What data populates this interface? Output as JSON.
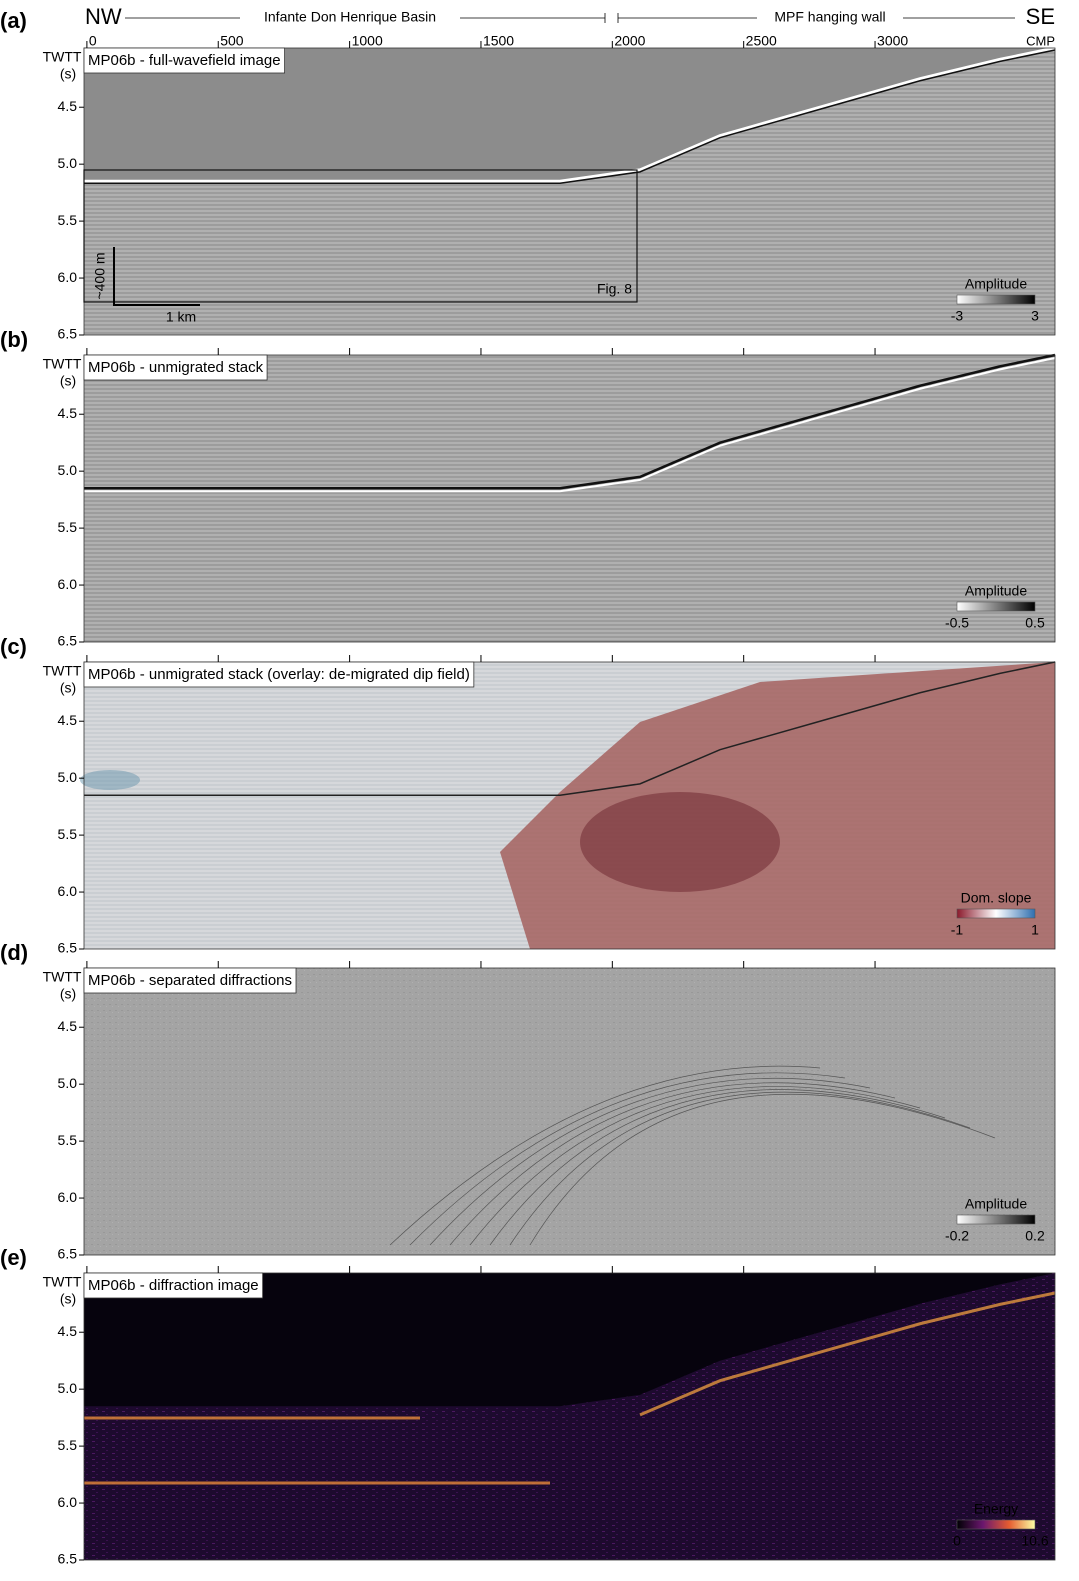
{
  "header": {
    "left": "NW",
    "basin": "Infante Don Henrique Basin",
    "hanging_wall": "MPF hanging wall",
    "right": "SE",
    "x_unit": "CMP"
  },
  "x_axis": {
    "lim": [
      -11,
      3685
    ],
    "ticks": [
      0,
      500,
      1000,
      1500,
      2000,
      2500,
      3000
    ]
  },
  "y_axis": {
    "label": "TWTT",
    "unit": "(s)",
    "lim": [
      3.98,
      6.5
    ],
    "ticks": [
      4.5,
      {
        "value": 5,
        "label": "5.0"
      },
      5.5,
      {
        "value": 6,
        "label": "6.0"
      },
      6.5
    ]
  },
  "panels": [
    {
      "letter": "(a)",
      "title": "MP06b - full-wavefield image",
      "legend": {
        "title": "Amplitude",
        "min": -3,
        "max": 3,
        "colors": [
          "#ffffff",
          "#000000"
        ]
      }
    },
    {
      "letter": "(b)",
      "title": "MP06b - unmigrated stack",
      "legend": {
        "title": "Amplitude",
        "min": -0.5,
        "max": 0.5,
        "colors": [
          "#ffffff",
          "#000000"
        ]
      }
    },
    {
      "letter": "(c)",
      "title": "MP06b - unmigrated stack (overlay: de-migrated dip field)",
      "legend": {
        "title": "Dom. slope",
        "min": -1,
        "max": 1,
        "colors": [
          "#8b1a2c",
          "#ffffff",
          "#2f6fb0"
        ]
      }
    },
    {
      "letter": "(d)",
      "title": "MP06b - separated diffractions",
      "legend": {
        "title": "Amplitude",
        "min": -0.2,
        "max": 0.2,
        "colors": [
          "#ffffff",
          "#000000"
        ]
      }
    },
    {
      "letter": "(e)",
      "title": "MP06b - diffraction image",
      "legend": {
        "title": "Energy",
        "min": 0,
        "max": 10.6,
        "colors": [
          "#000004",
          "#6a176e",
          "#e55c30",
          "#fcffa4"
        ]
      }
    }
  ],
  "annotations": {
    "vertical_scale": "~400 m",
    "horizontal_scale": "1 km",
    "box_label": "Fig. 8"
  }
}
